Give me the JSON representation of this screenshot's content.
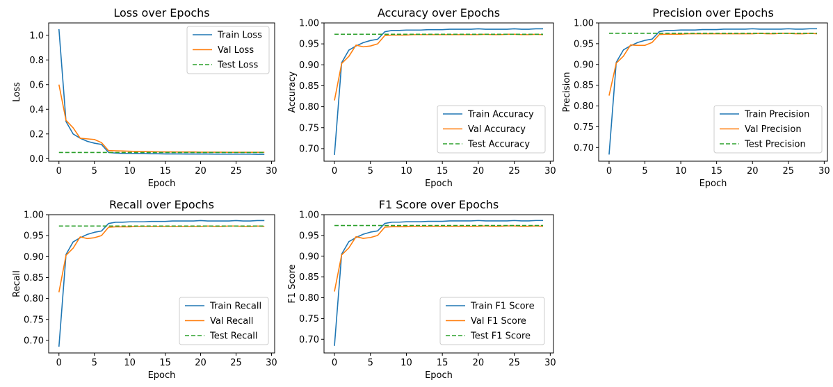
{
  "colors": {
    "train": "#1f77b4",
    "val": "#ff7f0e",
    "test": "#2ca02c"
  },
  "chart_data": [
    {
      "type": "line",
      "title": "Loss over Epochs",
      "xlabel": "Epoch",
      "ylabel": "Loss",
      "xlim": [
        -1.45,
        30.45
      ],
      "ylim": [
        -0.021,
        1.1
      ],
      "xticks": [
        0,
        5,
        10,
        15,
        20,
        25,
        30
      ],
      "yticks": [
        0.0,
        0.2,
        0.4,
        0.6,
        0.8,
        1.0
      ],
      "ytick_labels": [
        "0.0",
        "0.2",
        "0.4",
        "0.6",
        "0.8",
        "1.0"
      ],
      "legend_position": "top-right",
      "x": [
        0,
        1,
        2,
        3,
        4,
        5,
        6,
        7,
        8,
        9,
        10,
        11,
        12,
        13,
        14,
        15,
        16,
        17,
        18,
        19,
        20,
        21,
        22,
        23,
        24,
        25,
        26,
        27,
        28,
        29
      ],
      "series": [
        {
          "name": "Train Loss",
          "style": "solid",
          "values": [
            1.05,
            0.3,
            0.2,
            0.165,
            0.14,
            0.125,
            0.115,
            0.05,
            0.045,
            0.042,
            0.041,
            0.04,
            0.04,
            0.039,
            0.039,
            0.038,
            0.038,
            0.038,
            0.037,
            0.037,
            0.037,
            0.037,
            0.036,
            0.036,
            0.036,
            0.036,
            0.036,
            0.036,
            0.035,
            0.035
          ]
        },
        {
          "name": "Val Loss",
          "style": "solid",
          "values": [
            0.6,
            0.31,
            0.25,
            0.165,
            0.16,
            0.155,
            0.13,
            0.065,
            0.063,
            0.062,
            0.06,
            0.058,
            0.057,
            0.056,
            0.055,
            0.054,
            0.054,
            0.053,
            0.053,
            0.053,
            0.052,
            0.052,
            0.052,
            0.052,
            0.051,
            0.051,
            0.051,
            0.051,
            0.051,
            0.051
          ]
        },
        {
          "name": "Test Loss",
          "style": "dashed",
          "values": [
            0.05,
            0.05,
            0.05,
            0.05,
            0.05,
            0.05,
            0.05,
            0.05,
            0.05,
            0.05,
            0.05,
            0.05,
            0.05,
            0.05,
            0.05,
            0.05,
            0.05,
            0.05,
            0.05,
            0.05,
            0.05,
            0.05,
            0.05,
            0.05,
            0.05,
            0.05,
            0.05,
            0.05,
            0.05,
            0.05
          ]
        }
      ]
    },
    {
      "type": "line",
      "title": "Accuracy over Epochs",
      "xlabel": "Epoch",
      "ylabel": "Accuracy",
      "xlim": [
        -1.45,
        30.45
      ],
      "ylim": [
        0.67,
        1.0
      ],
      "xticks": [
        0,
        5,
        10,
        15,
        20,
        25,
        30
      ],
      "yticks": [
        0.7,
        0.75,
        0.8,
        0.85,
        0.9,
        0.95,
        1.0
      ],
      "ytick_labels": [
        "0.70",
        "0.75",
        "0.80",
        "0.85",
        "0.90",
        "0.95",
        "1.00"
      ],
      "legend_position": "bottom-right",
      "x": [
        0,
        1,
        2,
        3,
        4,
        5,
        6,
        7,
        8,
        9,
        10,
        11,
        12,
        13,
        14,
        15,
        16,
        17,
        18,
        19,
        20,
        21,
        22,
        23,
        24,
        25,
        26,
        27,
        28,
        29
      ],
      "series": [
        {
          "name": "Train Accuracy",
          "style": "solid",
          "values": [
            0.685,
            0.905,
            0.935,
            0.945,
            0.953,
            0.958,
            0.961,
            0.979,
            0.982,
            0.982,
            0.983,
            0.983,
            0.983,
            0.984,
            0.984,
            0.984,
            0.985,
            0.985,
            0.985,
            0.985,
            0.986,
            0.985,
            0.985,
            0.985,
            0.985,
            0.986,
            0.985,
            0.985,
            0.986,
            0.986
          ]
        },
        {
          "name": "Val Accuracy",
          "style": "solid",
          "values": [
            0.815,
            0.903,
            0.92,
            0.947,
            0.943,
            0.945,
            0.95,
            0.97,
            0.971,
            0.971,
            0.971,
            0.972,
            0.972,
            0.972,
            0.972,
            0.972,
            0.972,
            0.972,
            0.972,
            0.972,
            0.972,
            0.973,
            0.972,
            0.972,
            0.973,
            0.973,
            0.972,
            0.972,
            0.973,
            0.972
          ]
        },
        {
          "name": "Test Accuracy",
          "style": "dashed",
          "values": [
            0.973,
            0.973,
            0.973,
            0.973,
            0.973,
            0.973,
            0.973,
            0.973,
            0.973,
            0.973,
            0.973,
            0.973,
            0.973,
            0.973,
            0.973,
            0.973,
            0.973,
            0.973,
            0.973,
            0.973,
            0.973,
            0.973,
            0.973,
            0.973,
            0.973,
            0.973,
            0.973,
            0.973,
            0.973,
            0.973
          ]
        }
      ]
    },
    {
      "type": "line",
      "title": "Precision over Epochs",
      "xlabel": "Epoch",
      "ylabel": "Precision",
      "xlim": [
        -1.45,
        30.45
      ],
      "ylim": [
        0.667,
        1.0
      ],
      "xticks": [
        0,
        5,
        10,
        15,
        20,
        25,
        30
      ],
      "yticks": [
        0.7,
        0.75,
        0.8,
        0.85,
        0.9,
        0.95,
        1.0
      ],
      "ytick_labels": [
        "0.70",
        "0.75",
        "0.80",
        "0.85",
        "0.90",
        "0.95",
        "1.00"
      ],
      "legend_position": "bottom-right",
      "x": [
        0,
        1,
        2,
        3,
        4,
        5,
        6,
        7,
        8,
        9,
        10,
        11,
        12,
        13,
        14,
        15,
        16,
        17,
        18,
        19,
        20,
        21,
        22,
        23,
        24,
        25,
        26,
        27,
        28,
        29
      ],
      "series": [
        {
          "name": "Train Precision",
          "style": "solid",
          "values": [
            0.683,
            0.905,
            0.935,
            0.945,
            0.953,
            0.958,
            0.961,
            0.979,
            0.982,
            0.982,
            0.983,
            0.983,
            0.983,
            0.984,
            0.984,
            0.984,
            0.985,
            0.985,
            0.985,
            0.985,
            0.986,
            0.985,
            0.985,
            0.985,
            0.985,
            0.986,
            0.985,
            0.985,
            0.986,
            0.986
          ]
        },
        {
          "name": "Val Precision",
          "style": "solid",
          "values": [
            0.825,
            0.903,
            0.92,
            0.947,
            0.946,
            0.946,
            0.953,
            0.972,
            0.973,
            0.973,
            0.973,
            0.974,
            0.974,
            0.974,
            0.974,
            0.974,
            0.974,
            0.974,
            0.974,
            0.974,
            0.974,
            0.975,
            0.974,
            0.974,
            0.975,
            0.975,
            0.974,
            0.974,
            0.975,
            0.974
          ]
        },
        {
          "name": "Test Precision",
          "style": "dashed",
          "values": [
            0.975,
            0.975,
            0.975,
            0.975,
            0.975,
            0.975,
            0.975,
            0.975,
            0.975,
            0.975,
            0.975,
            0.975,
            0.975,
            0.975,
            0.975,
            0.975,
            0.975,
            0.975,
            0.975,
            0.975,
            0.975,
            0.975,
            0.975,
            0.975,
            0.975,
            0.975,
            0.975,
            0.975,
            0.975,
            0.975
          ]
        }
      ]
    },
    {
      "type": "line",
      "title": "Recall over Epochs",
      "xlabel": "Epoch",
      "ylabel": "Recall",
      "xlim": [
        -1.45,
        30.45
      ],
      "ylim": [
        0.67,
        1.0
      ],
      "xticks": [
        0,
        5,
        10,
        15,
        20,
        25,
        30
      ],
      "yticks": [
        0.7,
        0.75,
        0.8,
        0.85,
        0.9,
        0.95,
        1.0
      ],
      "ytick_labels": [
        "0.70",
        "0.75",
        "0.80",
        "0.85",
        "0.90",
        "0.95",
        "1.00"
      ],
      "legend_position": "bottom-right",
      "x": [
        0,
        1,
        2,
        3,
        4,
        5,
        6,
        7,
        8,
        9,
        10,
        11,
        12,
        13,
        14,
        15,
        16,
        17,
        18,
        19,
        20,
        21,
        22,
        23,
        24,
        25,
        26,
        27,
        28,
        29
      ],
      "series": [
        {
          "name": "Train Recall",
          "style": "solid",
          "values": [
            0.685,
            0.905,
            0.935,
            0.945,
            0.953,
            0.958,
            0.961,
            0.979,
            0.982,
            0.982,
            0.983,
            0.983,
            0.983,
            0.984,
            0.984,
            0.984,
            0.985,
            0.985,
            0.985,
            0.985,
            0.986,
            0.985,
            0.985,
            0.985,
            0.985,
            0.986,
            0.985,
            0.985,
            0.986,
            0.986
          ]
        },
        {
          "name": "Val Recall",
          "style": "solid",
          "values": [
            0.815,
            0.903,
            0.92,
            0.947,
            0.943,
            0.945,
            0.95,
            0.97,
            0.971,
            0.971,
            0.971,
            0.972,
            0.972,
            0.972,
            0.972,
            0.972,
            0.972,
            0.972,
            0.972,
            0.972,
            0.972,
            0.973,
            0.972,
            0.972,
            0.973,
            0.973,
            0.972,
            0.972,
            0.973,
            0.972
          ]
        },
        {
          "name": "Test Recall",
          "style": "dashed",
          "values": [
            0.973,
            0.973,
            0.973,
            0.973,
            0.973,
            0.973,
            0.973,
            0.973,
            0.973,
            0.973,
            0.973,
            0.973,
            0.973,
            0.973,
            0.973,
            0.973,
            0.973,
            0.973,
            0.973,
            0.973,
            0.973,
            0.973,
            0.973,
            0.973,
            0.973,
            0.973,
            0.973,
            0.973,
            0.973,
            0.973
          ]
        }
      ]
    },
    {
      "type": "line",
      "title": "F1 Score over Epochs",
      "xlabel": "Epoch",
      "ylabel": "F1 Score",
      "xlim": [
        -1.45,
        30.45
      ],
      "ylim": [
        0.667,
        1.0
      ],
      "xticks": [
        0,
        5,
        10,
        15,
        20,
        25,
        30
      ],
      "yticks": [
        0.7,
        0.75,
        0.8,
        0.85,
        0.9,
        0.95,
        1.0
      ],
      "ytick_labels": [
        "0.70",
        "0.75",
        "0.80",
        "0.85",
        "0.90",
        "0.95",
        "1.00"
      ],
      "legend_position": "bottom-right",
      "x": [
        0,
        1,
        2,
        3,
        4,
        5,
        6,
        7,
        8,
        9,
        10,
        11,
        12,
        13,
        14,
        15,
        16,
        17,
        18,
        19,
        20,
        21,
        22,
        23,
        24,
        25,
        26,
        27,
        28,
        29
      ],
      "series": [
        {
          "name": "Train F1 Score",
          "style": "solid",
          "values": [
            0.684,
            0.905,
            0.935,
            0.945,
            0.953,
            0.958,
            0.961,
            0.979,
            0.982,
            0.982,
            0.983,
            0.983,
            0.983,
            0.984,
            0.984,
            0.984,
            0.985,
            0.985,
            0.985,
            0.985,
            0.986,
            0.985,
            0.985,
            0.985,
            0.985,
            0.986,
            0.985,
            0.985,
            0.986,
            0.986
          ]
        },
        {
          "name": "Val F1 Score",
          "style": "solid",
          "values": [
            0.815,
            0.903,
            0.92,
            0.947,
            0.943,
            0.945,
            0.95,
            0.97,
            0.971,
            0.971,
            0.971,
            0.972,
            0.972,
            0.972,
            0.972,
            0.972,
            0.972,
            0.972,
            0.972,
            0.972,
            0.972,
            0.973,
            0.972,
            0.972,
            0.973,
            0.973,
            0.972,
            0.972,
            0.973,
            0.972
          ]
        },
        {
          "name": "Test F1 Score",
          "style": "dashed",
          "values": [
            0.974,
            0.974,
            0.974,
            0.974,
            0.974,
            0.974,
            0.974,
            0.974,
            0.974,
            0.974,
            0.974,
            0.974,
            0.974,
            0.974,
            0.974,
            0.974,
            0.974,
            0.974,
            0.974,
            0.974,
            0.974,
            0.974,
            0.974,
            0.974,
            0.974,
            0.974,
            0.974,
            0.974,
            0.974,
            0.974
          ]
        }
      ]
    }
  ]
}
